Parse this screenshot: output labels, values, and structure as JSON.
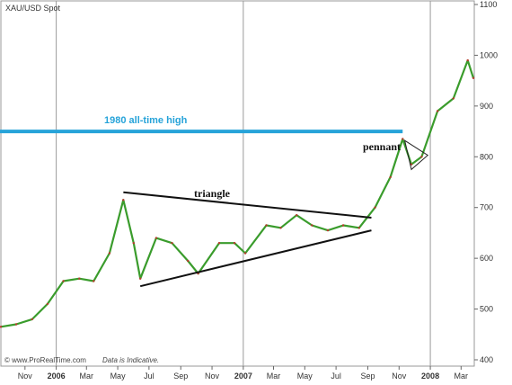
{
  "chart_data": {
    "type": "line",
    "title": "XAU/USD Spot",
    "xlabel": "",
    "ylabel": "",
    "ylim": [
      400,
      1100
    ],
    "y_ticks": [
      1100,
      1000,
      900,
      800,
      700,
      600,
      500,
      400
    ],
    "x_ticks": [
      {
        "label": "Nov",
        "date": "2005-11-01",
        "bold": false
      },
      {
        "label": "2006",
        "date": "2006-01-01",
        "bold": true
      },
      {
        "label": "Mar",
        "date": "2006-03-01",
        "bold": false
      },
      {
        "label": "May",
        "date": "2006-05-01",
        "bold": false
      },
      {
        "label": "Jul",
        "date": "2006-07-01",
        "bold": false
      },
      {
        "label": "Sep",
        "date": "2006-09-01",
        "bold": false
      },
      {
        "label": "Nov",
        "date": "2006-11-01",
        "bold": false
      },
      {
        "label": "2007",
        "date": "2007-01-01",
        "bold": true
      },
      {
        "label": "Mar",
        "date": "2007-03-01",
        "bold": false
      },
      {
        "label": "May",
        "date": "2007-05-01",
        "bold": false
      },
      {
        "label": "Jul",
        "date": "2007-07-01",
        "bold": false
      },
      {
        "label": "Sep",
        "date": "2007-09-01",
        "bold": false
      },
      {
        "label": "Nov",
        "date": "2007-11-01",
        "bold": false
      },
      {
        "label": "2008",
        "date": "2008-01-01",
        "bold": true
      },
      {
        "label": "Mar",
        "date": "2008-03-01",
        "bold": false
      }
    ],
    "year_lines": [
      "2006-01-01",
      "2007-01-01",
      "2008-01-01"
    ],
    "series": [
      {
        "color": "#3a9c2c",
        "x": [
          "2005-09-15",
          "2005-10-15",
          "2005-11-15",
          "2005-12-15",
          "2006-01-15",
          "2006-02-15",
          "2006-03-15",
          "2006-04-15",
          "2006-05-12",
          "2006-06-01",
          "2006-06-14",
          "2006-07-15",
          "2006-08-15",
          "2006-09-15",
          "2006-10-05",
          "2006-11-15",
          "2006-12-15",
          "2007-01-05",
          "2007-02-15",
          "2007-03-15",
          "2007-04-15",
          "2007-05-15",
          "2007-06-15",
          "2007-07-15",
          "2007-08-15",
          "2007-09-15",
          "2007-10-15",
          "2007-11-08",
          "2007-11-25",
          "2007-12-15",
          "2008-01-15",
          "2008-02-15",
          "2008-03-14",
          "2008-03-25"
        ],
        "values": [
          465,
          470,
          480,
          510,
          555,
          560,
          555,
          610,
          715,
          630,
          560,
          640,
          630,
          595,
          570,
          630,
          630,
          610,
          665,
          660,
          685,
          665,
          655,
          665,
          660,
          700,
          760,
          835,
          785,
          800,
          890,
          915,
          990,
          955
        ]
      }
    ],
    "annotations": [
      {
        "label": "1980 all-time high",
        "type": "hline",
        "y": 850,
        "x_start": "2005-09-01",
        "x_end": "2007-11-08",
        "color": "#26a3d9"
      },
      {
        "label": "triangle",
        "type": "pattern",
        "upper": [
          [
            "2006-05-12",
            730
          ],
          [
            "2007-09-08",
            680
          ]
        ],
        "lower": [
          [
            "2006-06-14",
            545
          ],
          [
            "2007-09-08",
            655
          ]
        ]
      },
      {
        "label": "pennant",
        "type": "pattern",
        "points": [
          [
            "2007-11-12",
            832
          ],
          [
            "2007-12-27",
            803
          ],
          [
            "2007-11-25",
            775
          ]
        ]
      }
    ],
    "grid": false,
    "legend": "none"
  },
  "footer": {
    "credit": "© www.ProRealTime.com",
    "note": "Data is Indicative."
  }
}
